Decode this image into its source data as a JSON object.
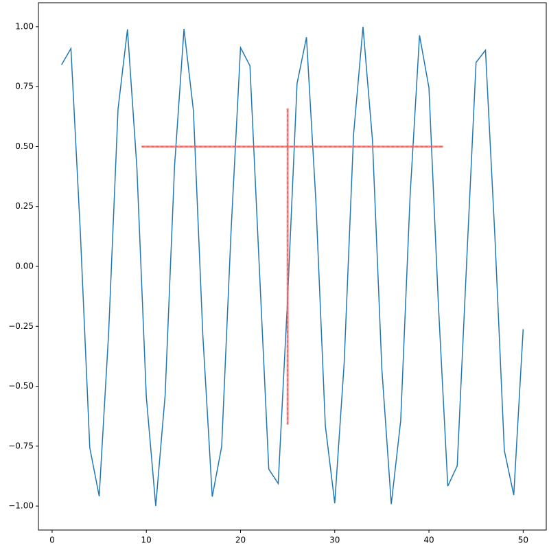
{
  "chart_data": {
    "type": "line",
    "x": [
      1,
      2,
      3,
      4,
      5,
      6,
      7,
      8,
      9,
      10,
      11,
      12,
      13,
      14,
      15,
      16,
      17,
      18,
      19,
      20,
      21,
      22,
      23,
      24,
      25,
      26,
      27,
      28,
      29,
      30,
      31,
      32,
      33,
      34,
      35,
      36,
      37,
      38,
      39,
      40,
      41,
      42,
      43,
      44,
      45,
      46,
      47,
      48,
      49,
      50
    ],
    "series": [
      {
        "color": "#1f77b4",
        "values": [
          0.841,
          0.909,
          0.141,
          -0.757,
          -0.959,
          -0.279,
          0.657,
          0.989,
          0.412,
          -0.544,
          -1.0,
          -0.537,
          0.42,
          0.991,
          0.65,
          -0.288,
          -0.961,
          -0.751,
          0.15,
          0.913,
          0.837,
          -0.009,
          -0.846,
          -0.906,
          -0.132,
          0.763,
          0.956,
          0.271,
          -0.664,
          -0.988,
          -0.404,
          0.551,
          1.0,
          0.529,
          -0.428,
          -0.992,
          -0.644,
          0.296,
          0.964,
          0.745,
          -0.159,
          -0.917,
          -0.832,
          0.018,
          0.851,
          0.902,
          0.124,
          -0.768,
          -0.954,
          -0.262
        ]
      }
    ],
    "crosshair": {
      "x": 25,
      "y": 0.5,
      "xspan": [
        9.5,
        41.5
      ],
      "yspan": [
        -0.66,
        0.66
      ],
      "color": "#ff6666",
      "dash_color": "#808080"
    },
    "xlim": [
      -1.45,
      52.45
    ],
    "ylim": [
      -1.1,
      1.1
    ],
    "xticks": [
      0,
      10,
      20,
      30,
      40,
      50
    ],
    "yticks": [
      {
        "value": -1,
        "label": "−1.00"
      },
      {
        "value": -0.75,
        "label": "−0.75"
      },
      {
        "value": -0.5,
        "label": "−0.50"
      },
      {
        "value": -0.25,
        "label": "−0.25"
      },
      {
        "value": 0,
        "label": "0.00"
      },
      {
        "value": 0.25,
        "label": "0.25"
      },
      {
        "value": 0.5,
        "label": "0.50"
      },
      {
        "value": 0.75,
        "label": "0.75"
      },
      {
        "value": 1,
        "label": "1.00"
      }
    ]
  }
}
